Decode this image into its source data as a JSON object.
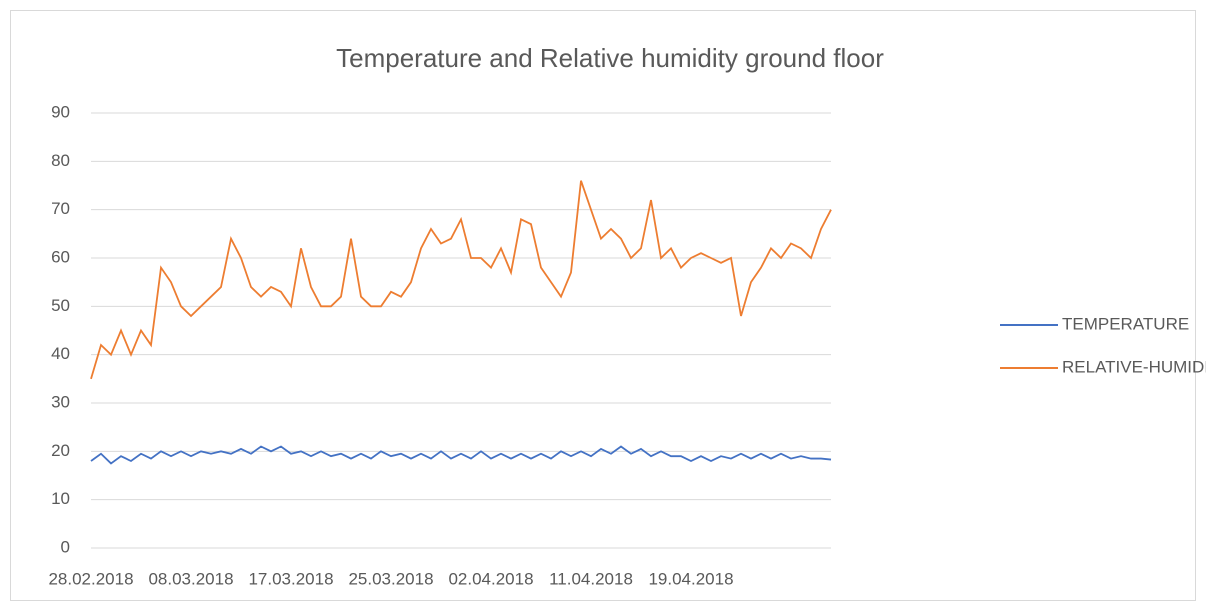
{
  "chart_data": {
    "type": "line",
    "title": "Temperature and Relative humidity ground floor",
    "categories": [
      "28.02.2018",
      null,
      null,
      null,
      null,
      null,
      null,
      null,
      null,
      null,
      "08.03.2018",
      null,
      null,
      null,
      null,
      null,
      null,
      null,
      null,
      null,
      "17.03.2018",
      null,
      null,
      null,
      null,
      null,
      null,
      null,
      null,
      null,
      "25.03.2018",
      null,
      null,
      null,
      null,
      null,
      null,
      null,
      null,
      null,
      "02.04.2018",
      null,
      null,
      null,
      null,
      null,
      null,
      null,
      null,
      null,
      "11.04.2018",
      null,
      null,
      null,
      null,
      null,
      null,
      null,
      null,
      null,
      "19.04.2018",
      null,
      null,
      null,
      null,
      null,
      null,
      null,
      null,
      null,
      null,
      null,
      null,
      null,
      null
    ],
    "series": [
      {
        "name": "TEMPERATURE",
        "color": "#4472c4",
        "values": [
          18,
          19.5,
          17.5,
          19,
          18,
          19.5,
          18.5,
          20,
          19,
          20,
          19,
          20,
          19.5,
          20,
          19.5,
          20.5,
          19.5,
          21,
          20,
          21,
          19.5,
          20,
          19,
          20,
          19,
          19.5,
          18.5,
          19.5,
          18.5,
          20,
          19,
          19.5,
          18.5,
          19.5,
          18.5,
          20,
          18.5,
          19.5,
          18.5,
          20,
          18.5,
          19.5,
          18.5,
          19.5,
          18.5,
          19.5,
          18.5,
          20,
          19,
          20,
          19,
          20.5,
          19.5,
          21,
          19.5,
          20.5,
          19,
          20,
          19,
          19,
          18,
          19,
          18,
          19,
          18.5,
          19.5,
          18.5,
          19.5,
          18.5,
          19.5,
          18.5,
          19,
          18.5,
          18.5,
          18.3
        ]
      },
      {
        "name": "RELATIVE-HUMIDITY",
        "color": "#ed7d31",
        "values": [
          35,
          42,
          40,
          45,
          40,
          45,
          42,
          58,
          55,
          50,
          48,
          50,
          52,
          54,
          64,
          60,
          54,
          52,
          54,
          53,
          50,
          62,
          54,
          50,
          50,
          52,
          64,
          52,
          50,
          50,
          53,
          52,
          55,
          62,
          66,
          63,
          64,
          68,
          60,
          60,
          58,
          62,
          57,
          68,
          67,
          58,
          55,
          52,
          57,
          76,
          70,
          64,
          66,
          64,
          60,
          62,
          72,
          60,
          62,
          58,
          60,
          61,
          60,
          59,
          60,
          48,
          55,
          58,
          62,
          60,
          63,
          62,
          60,
          66,
          70
        ]
      }
    ],
    "ylim": [
      0,
      90
    ],
    "yticks": [
      0,
      10,
      20,
      30,
      40,
      50,
      60,
      70,
      80,
      90
    ],
    "grid": true,
    "legend": "right"
  }
}
